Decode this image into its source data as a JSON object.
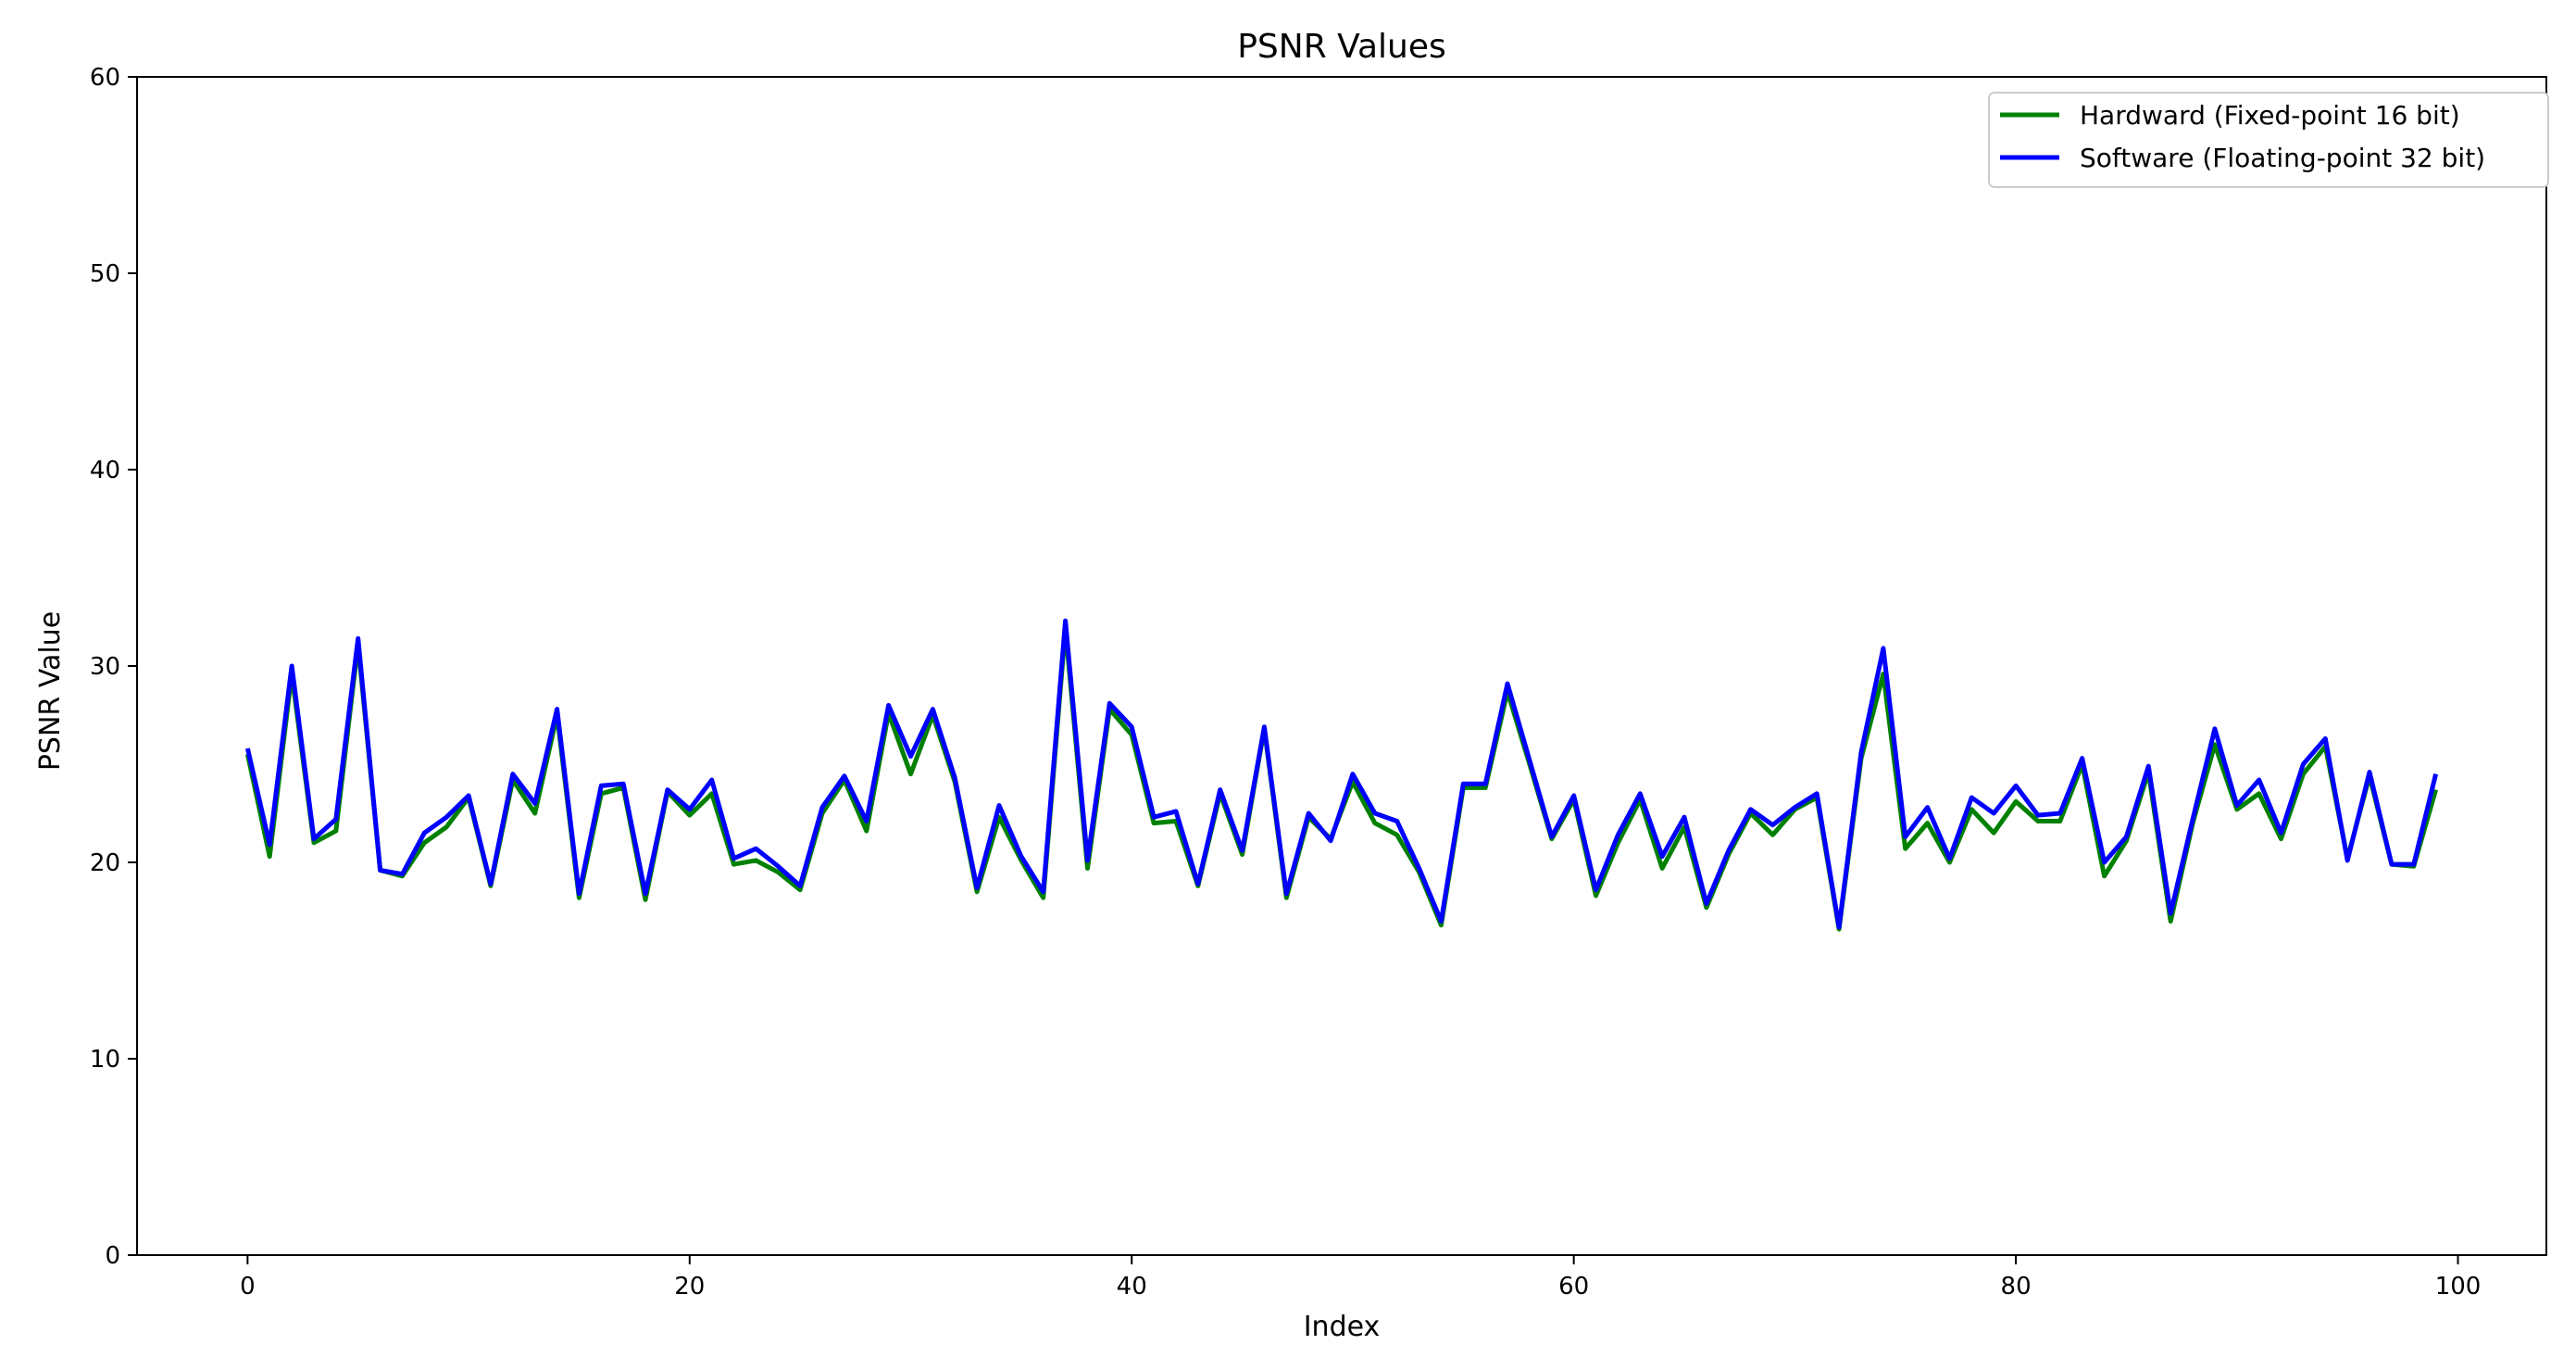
{
  "chart_data": {
    "type": "line",
    "title": "PSNR Values",
    "xlabel": "Index",
    "ylabel": "PSNR Value",
    "xlim": [
      -5,
      104
    ],
    "ylim": [
      0,
      60
    ],
    "xticks": [
      0,
      20,
      40,
      60,
      80,
      100
    ],
    "yticks": [
      0,
      10,
      20,
      30,
      40,
      50,
      60
    ],
    "grid": false,
    "legend_position": "top-right",
    "x": [
      0,
      1,
      2,
      3,
      4,
      5,
      6,
      7,
      8,
      9,
      10,
      11,
      12,
      13,
      14,
      15,
      16,
      17,
      18,
      19,
      20,
      21,
      22,
      23,
      24,
      25,
      26,
      27,
      28,
      29,
      30,
      31,
      32,
      33,
      34,
      35,
      36,
      37,
      38,
      39,
      40,
      41,
      42,
      43,
      44,
      45,
      46,
      47,
      48,
      49,
      50,
      51,
      52,
      53,
      54,
      55,
      56,
      57,
      58,
      59,
      60,
      61,
      62,
      63,
      64,
      65,
      66,
      67,
      68,
      69,
      70,
      71,
      72,
      73,
      74,
      75,
      76,
      77,
      78,
      79,
      80,
      81,
      82,
      83,
      84,
      85,
      86,
      87,
      88,
      89,
      90,
      91,
      92,
      93,
      94,
      95,
      96,
      97,
      98,
      99
    ],
    "series": [
      {
        "name": "Hardward (Fixed-point 16 bit)",
        "color": "#008000",
        "values": [
          25.5,
          20.3,
          29.6,
          21.0,
          21.6,
          31.1,
          19.6,
          19.3,
          21.0,
          21.8,
          23.3,
          18.8,
          24.2,
          22.5,
          27.5,
          18.2,
          23.5,
          23.8,
          18.1,
          23.6,
          22.4,
          23.5,
          19.9,
          20.1,
          19.5,
          18.6,
          22.5,
          24.2,
          21.6,
          27.6,
          24.5,
          27.5,
          24.1,
          18.5,
          22.3,
          20.1,
          18.2,
          31.9,
          19.7,
          27.8,
          26.5,
          22.0,
          22.1,
          18.8,
          23.5,
          20.4,
          26.8,
          18.2,
          22.3,
          21.2,
          24.1,
          22.0,
          21.4,
          19.5,
          16.8,
          23.8,
          23.8,
          28.7,
          25.0,
          21.2,
          23.2,
          18.3,
          21.0,
          23.2,
          19.7,
          21.8,
          17.7,
          20.4,
          22.5,
          21.4,
          22.7,
          23.3,
          16.6,
          25.3,
          29.6,
          20.7,
          22.0,
          20.0,
          22.7,
          21.5,
          23.1,
          22.1,
          22.1,
          25.0,
          19.3,
          21.1,
          24.6,
          17.0,
          22.0,
          26.0,
          22.7,
          23.5,
          21.2,
          24.5,
          25.9,
          20.2,
          24.4,
          19.9,
          19.8,
          23.7
        ]
      },
      {
        "name": "Software (Floating-point 32 bit)",
        "color": "#0000ff",
        "values": [
          25.8,
          20.9,
          30.0,
          21.2,
          22.2,
          31.4,
          19.6,
          19.4,
          21.5,
          22.3,
          23.4,
          18.9,
          24.5,
          23.0,
          27.8,
          18.4,
          23.9,
          24.0,
          18.4,
          23.7,
          22.7,
          24.2,
          20.2,
          20.7,
          19.8,
          18.8,
          22.8,
          24.4,
          22.1,
          28.0,
          25.4,
          27.8,
          24.3,
          18.7,
          22.9,
          20.3,
          18.5,
          32.3,
          20.1,
          28.1,
          26.9,
          22.3,
          22.6,
          18.9,
          23.7,
          20.6,
          26.9,
          18.4,
          22.5,
          21.1,
          24.5,
          22.5,
          22.1,
          19.7,
          17.0,
          24.0,
          24.0,
          29.1,
          25.2,
          21.3,
          23.4,
          18.6,
          21.4,
          23.5,
          20.3,
          22.3,
          17.9,
          20.6,
          22.7,
          21.9,
          22.8,
          23.5,
          16.7,
          25.6,
          30.9,
          21.3,
          22.8,
          20.2,
          23.3,
          22.5,
          23.9,
          22.4,
          22.5,
          25.3,
          20.0,
          21.3,
          24.9,
          17.4,
          22.2,
          26.8,
          22.9,
          24.2,
          21.5,
          25.0,
          26.3,
          20.1,
          24.6,
          19.9,
          19.9,
          24.5
        ]
      }
    ]
  }
}
